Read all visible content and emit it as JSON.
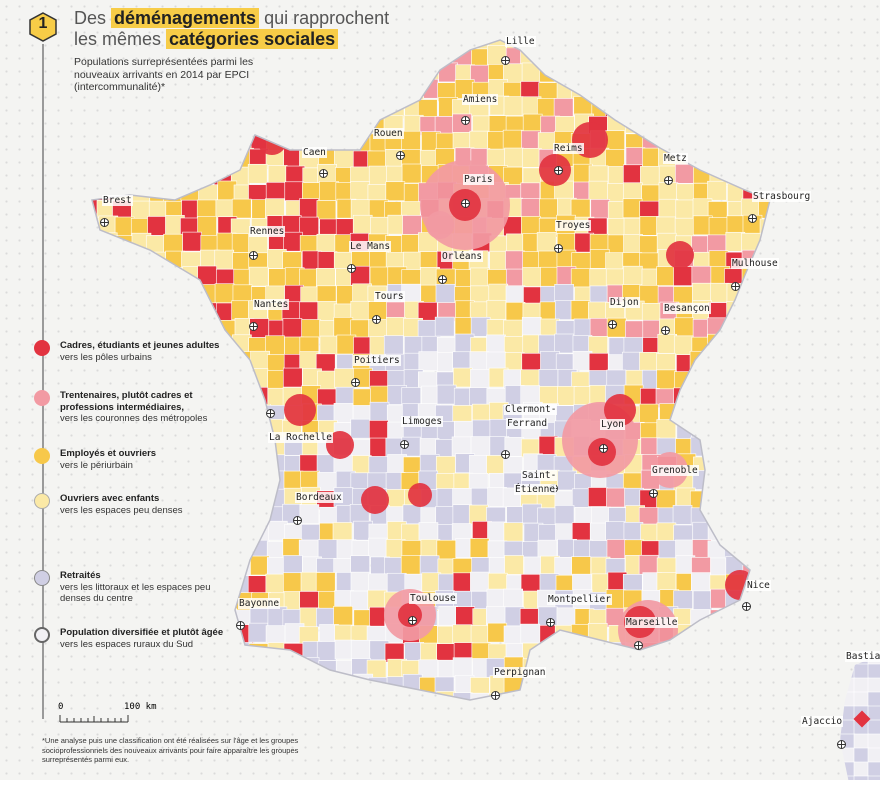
{
  "header": {
    "badge_number": "1",
    "title_l1_a": "Des ",
    "title_l1_hl": "déménagements",
    "title_l1_b": " qui rapprochent",
    "title_l2_a": "les mêmes ",
    "title_l2_hl": "catégories sociales",
    "subtitle": "Populations surreprésentées parmi les nouveaux arrivants en 2014 par EPCI (intercommunalité)*"
  },
  "legend": [
    {
      "color": "#e23340",
      "title": "Cadres, étudiants et jeunes adultes",
      "desc": "vers les pôles urbains"
    },
    {
      "color": "#f29aa3",
      "title": "Trentenaires, plutôt cadres et professions intermédiaires,",
      "desc": "vers les couronnes des métropoles"
    },
    {
      "color": "#f7c84a",
      "title": "Employés et ouvriers",
      "desc": "vers le périurbain"
    },
    {
      "color": "#fbe9a6",
      "title": "Ouvriers avec enfants",
      "desc": "vers les espaces peu denses"
    },
    {
      "color": "#d0cfe4",
      "title": "Retraités",
      "desc": "vers les littoraux et les espaces peu denses du centre"
    },
    {
      "color": "#f1f0f4",
      "title": "Population diversifiée et plutôt âgée",
      "desc": "vers les espaces ruraux du Sud"
    }
  ],
  "scale": {
    "zero": "0",
    "label": "100 km"
  },
  "footnote": "*Une analyse puis une classification ont été réalisées sur l'âge et les groupes socioprofessionnels des nouveaux arrivants pour faire apparaître les groupes surreprésentés parmi eux.",
  "cities": {
    "lille": "Lille",
    "amiens": "Amiens",
    "rouen": "Rouen",
    "caen": "Caen",
    "reims": "Reims",
    "metz": "Metz",
    "paris": "Paris",
    "brest": "Brest",
    "strasbourg": "Strasbourg",
    "troyes": "Troyes",
    "rennes": "Rennes",
    "lemans": "Le Mans",
    "orleans": "Orléans",
    "mulhouse": "Mulhouse",
    "nantes": "Nantes",
    "tours": "Tours",
    "dijon": "Dijon",
    "besancon": "Besançon",
    "poitiers": "Poitiers",
    "larochelle": "La Rochelle",
    "limoges": "Limoges",
    "clermont1": "Clermont-",
    "clermont2": "Ferrand",
    "lyon": "Lyon",
    "saintetienne1": "Saint-",
    "saintetienne2": "Étienne",
    "grenoble": "Grenoble",
    "bordeaux": "Bordeaux",
    "nice": "Nice",
    "bayonne": "Bayonne",
    "toulouse": "Toulouse",
    "montpellier": "Montpellier",
    "marseille": "Marseille",
    "perpignan": "Perpignan",
    "ajaccio": "Ajaccio",
    "bastia": "Bastia"
  },
  "colors": {
    "urban": "#e23340",
    "crown": "#f29aa3",
    "periurban": "#f7c84a",
    "sparse": "#fbe9a6",
    "retired": "#d0cfe4",
    "diverse": "#f1f0f4",
    "badge": "#f7cc47"
  }
}
